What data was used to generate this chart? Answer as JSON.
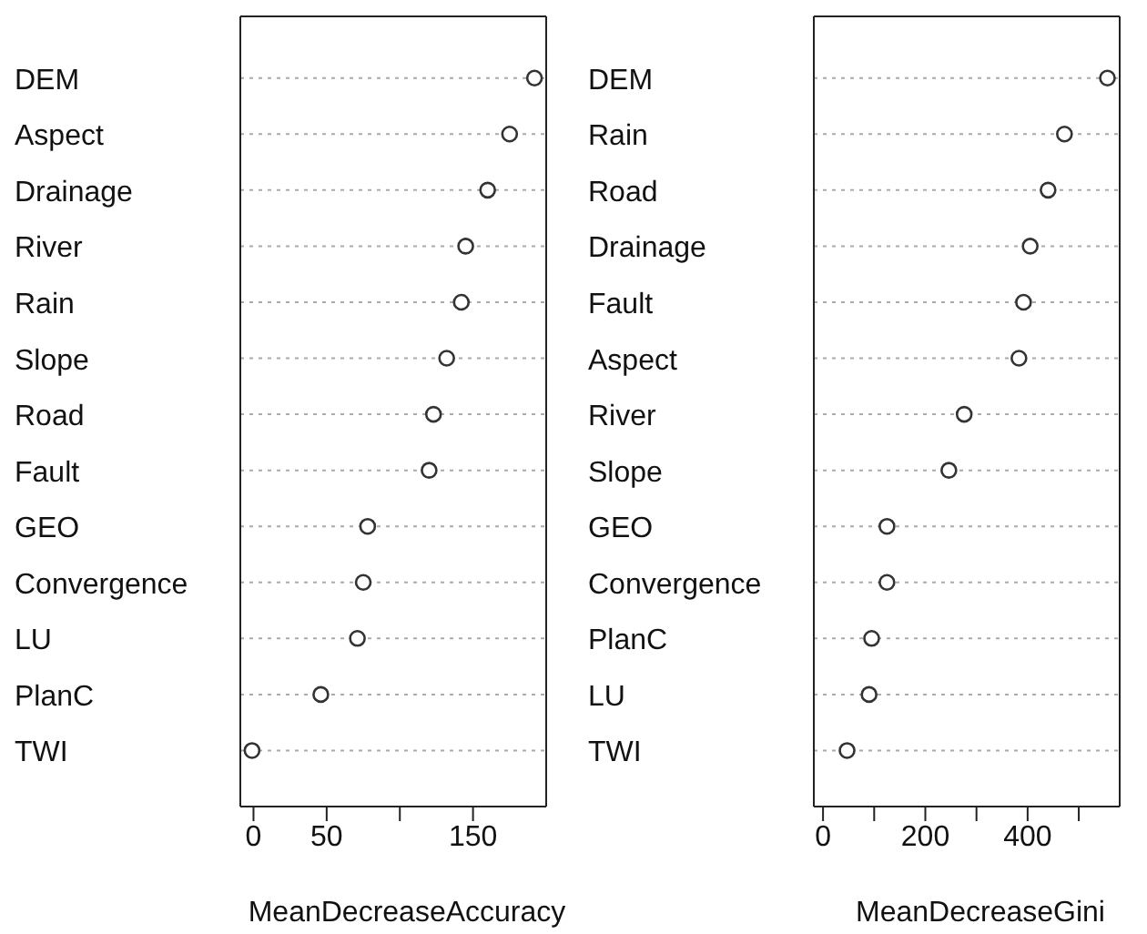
{
  "chart_data": [
    {
      "type": "scatter",
      "categories": [
        "DEM",
        "Aspect",
        "Drainage",
        "River",
        "Rain",
        "Slope",
        "Road",
        "Fault",
        "GEO",
        "Convergence",
        "LU",
        "PlanC",
        "TWI"
      ],
      "series": [
        {
          "color": "#333333",
          "values": [
            192,
            175,
            160,
            145,
            142,
            132,
            123,
            120,
            78,
            75,
            71,
            46,
            -1
          ]
        }
      ],
      "orientation": "horizontal",
      "xlabel": "MeanDecreaseAccuracy",
      "xlim": [
        -9,
        200
      ],
      "xticks": [
        0,
        50,
        {
          "value": 100,
          "label": null
        },
        150
      ],
      "grid": "y",
      "marker": "circle",
      "legend": false
    },
    {
      "type": "scatter",
      "categories": [
        "DEM",
        "Rain",
        "Road",
        "Drainage",
        "Fault",
        "Aspect",
        "River",
        "Slope",
        "GEO",
        "Convergence",
        "PlanC",
        "LU",
        "TWI"
      ],
      "series": [
        {
          "color": "#333333",
          "values": [
            556,
            472,
            440,
            405,
            392,
            383,
            276,
            246,
            125,
            125,
            95,
            90,
            47
          ]
        }
      ],
      "orientation": "horizontal",
      "xlabel": "MeanDecreaseGini",
      "xlim": [
        -18,
        580
      ],
      "xticks": [
        0,
        {
          "value": 100,
          "label": null
        },
        200,
        {
          "value": 300,
          "label": null
        },
        400,
        {
          "value": 500,
          "label": null
        }
      ],
      "grid": "y",
      "marker": "circle",
      "legend": false
    }
  ]
}
